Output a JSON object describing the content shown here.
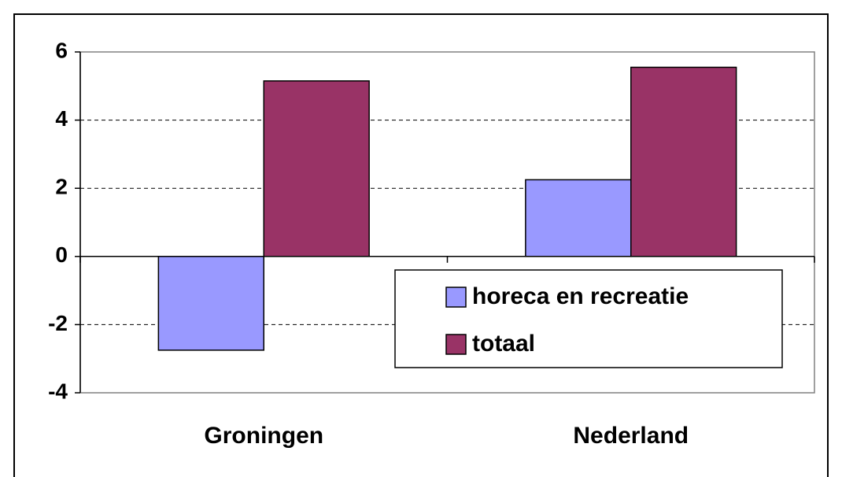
{
  "chart_data": {
    "type": "bar",
    "categories": [
      "Groningen",
      "Nederland"
    ],
    "series": [
      {
        "name": "horeca en recreatie",
        "color": "#9999ff",
        "values": [
          -2.75,
          2.25
        ]
      },
      {
        "name": "totaal",
        "color": "#993366",
        "values": [
          5.15,
          5.55
        ]
      }
    ],
    "ylim": [
      -4,
      6
    ],
    "yticks": [
      -4,
      -2,
      0,
      2,
      4,
      6
    ],
    "grid": true,
    "legend_position": "lower right"
  }
}
